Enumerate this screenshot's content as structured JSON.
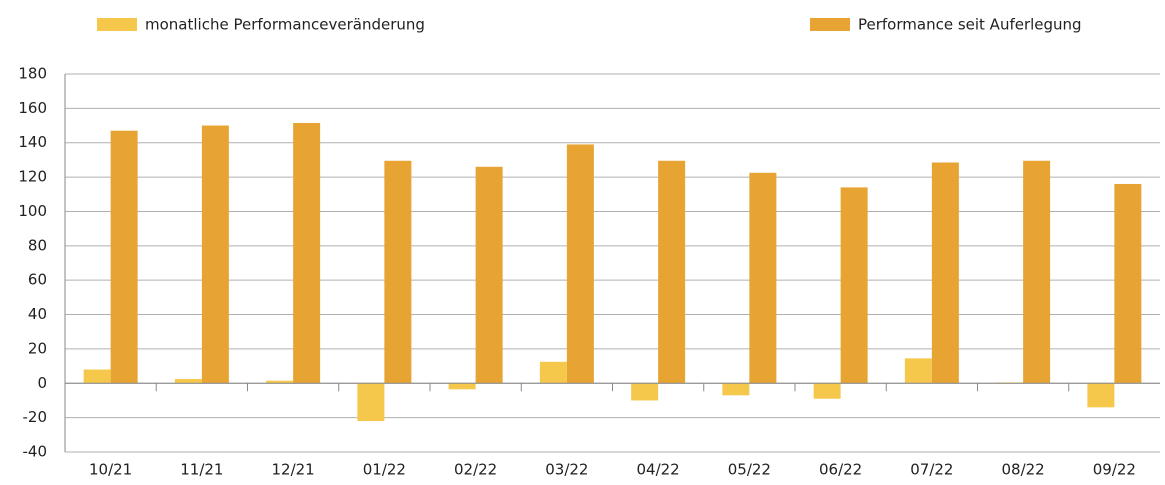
{
  "chart_data": {
    "type": "bar",
    "categories": [
      "10/21",
      "11/21",
      "12/21",
      "01/22",
      "02/22",
      "03/22",
      "04/22",
      "05/22",
      "06/22",
      "07/22",
      "08/22",
      "09/22"
    ],
    "series": [
      {
        "name": "monatliche Performanceveränderung",
        "color": "#f5c84c",
        "values": [
          8,
          2.5,
          1.5,
          -22,
          -3.5,
          12.5,
          -10,
          -7,
          -9,
          14.5,
          0.5,
          -14
        ]
      },
      {
        "name": "Performance seit Auferlegung",
        "color": "#e8a432",
        "values": [
          147,
          150,
          151.5,
          129.5,
          126,
          139,
          129.5,
          122.5,
          114,
          128.5,
          129.5,
          116
        ]
      }
    ],
    "ylim": [
      -40,
      180
    ],
    "yticks": [
      -40,
      -20,
      0,
      20,
      40,
      60,
      80,
      100,
      120,
      140,
      160,
      180
    ],
    "grid": true
  }
}
